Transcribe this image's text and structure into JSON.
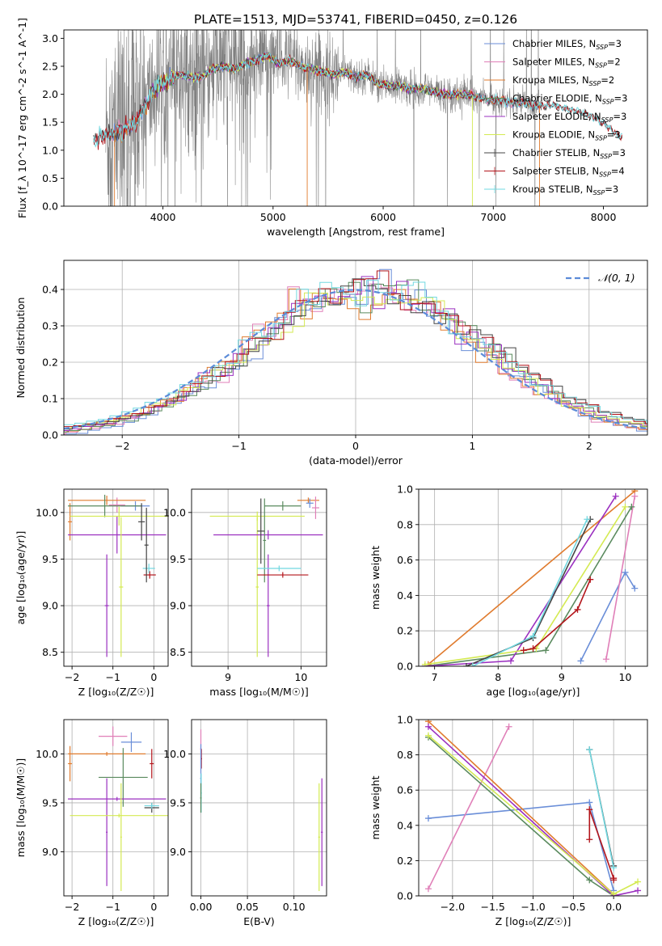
{
  "title": "PLATE=1513, MJD=53741, FIBERID=0450, z=0.126",
  "colors": {
    "Chabrier MILES": "#6a8ed8",
    "Salpeter MILES": "#e07fb8",
    "Kroupa MILES": "#e07b2e",
    "Chabrier ELODIE": "#5a8a5e",
    "Salpeter ELODIE": "#9b30c0",
    "Kroupa ELODIE": "#d4ea52",
    "Chabrier STELIB": "#444444",
    "Salpeter STELIB": "#b3141a",
    "Kroupa STELIB": "#72d8e0",
    "data": "#808080",
    "normal": "#5b8bd8",
    "grid": "#b0b0b0"
  },
  "chart_data": [
    {
      "id": "spectrum",
      "type": "line",
      "title": "PLATE=1513, MJD=53741, FIBERID=0450, z=0.126",
      "xlabel": "wavelength [Angstrom, rest frame]",
      "ylabel": "Flux [f_λ 10^-17 erg cm^-2 s^-1 A^-1]",
      "xlim": [
        3100,
        8400
      ],
      "ylim": [
        0,
        3.15
      ],
      "xticks": [
        4000,
        5000,
        6000,
        7000,
        8000
      ],
      "yticks": [
        0.0,
        0.5,
        1.0,
        1.5,
        2.0,
        2.5,
        3.0
      ],
      "ytick_labels": [
        "0.0",
        "0.5",
        "1.0",
        "1.5",
        "2.0",
        "2.5",
        "3.0"
      ],
      "grid": false,
      "legend_position": "top-right",
      "legend": [
        {
          "label": "Chabrier MILES, N",
          "sub": "SSP",
          "suffix": "=3"
        },
        {
          "label": "Salpeter MILES, N",
          "sub": "SSP",
          "suffix": "=2"
        },
        {
          "label": "Kroupa MILES, N",
          "sub": "SSP",
          "suffix": "=2"
        },
        {
          "label": "Chabrier ELODIE, N",
          "sub": "SSP",
          "suffix": "=3"
        },
        {
          "label": "Salpeter ELODIE, N",
          "sub": "SSP",
          "suffix": "=3"
        },
        {
          "label": "Kroupa ELODIE, N",
          "sub": "SSP",
          "suffix": "=3"
        },
        {
          "label": "Chabrier STELIB, N",
          "sub": "SSP",
          "suffix": "=3"
        },
        {
          "label": "Salpeter STELIB, N",
          "sub": "SSP",
          "suffix": "=4"
        },
        {
          "label": "Kroupa STELIB, N",
          "sub": "SSP",
          "suffix": "=3"
        }
      ],
      "model_curve": {
        "x": [
          3370,
          3450,
          3550,
          3650,
          3750,
          3850,
          3950,
          4050,
          4150,
          4250,
          4350,
          4450,
          4550,
          4650,
          4750,
          4850,
          4950,
          5050,
          5150,
          5250,
          5350,
          5450,
          5550,
          5650,
          5750,
          5850,
          5950,
          6050,
          6150,
          6250,
          6350,
          6450,
          6550,
          6650,
          6750,
          6850,
          6950,
          7050,
          7150,
          7250,
          7350,
          7450,
          7550,
          7650,
          7750,
          7850,
          7950,
          8050,
          8150
        ],
        "y": [
          1.15,
          1.25,
          1.3,
          1.35,
          1.5,
          1.85,
          2.15,
          2.25,
          2.35,
          2.3,
          2.3,
          2.45,
          2.5,
          2.45,
          2.55,
          2.6,
          2.7,
          2.55,
          2.6,
          2.5,
          2.45,
          2.4,
          2.35,
          2.4,
          2.3,
          2.35,
          2.2,
          2.15,
          2.15,
          2.1,
          2.1,
          2.05,
          2.0,
          2.0,
          2.0,
          1.95,
          1.9,
          1.9,
          1.85,
          1.85,
          1.8,
          1.8,
          1.8,
          1.75,
          1.7,
          1.65,
          1.55,
          1.4,
          1.25
        ]
      },
      "data_range": [
        3480,
        7440
      ]
    },
    {
      "id": "residuals",
      "type": "histogram",
      "xlabel": "(data-model)/error",
      "ylabel": "Normed distribution",
      "xlim": [
        -2.5,
        2.5
      ],
      "ylim": [
        0,
        0.48
      ],
      "xticks": [
        -2,
        -1,
        0,
        1,
        2
      ],
      "xtick_labels": [
        "−2",
        "−1",
        "0",
        "1",
        "2"
      ],
      "yticks": [
        0.0,
        0.1,
        0.2,
        0.3,
        0.4
      ],
      "ytick_labels": [
        "0.0",
        "0.1",
        "0.2",
        "0.3",
        "0.4"
      ],
      "grid": true,
      "bin_width": 0.1,
      "legend_position": "top-right",
      "normal_label": "𝒩(0, 1)"
    },
    {
      "id": "age-vs-Z",
      "type": "errorbar",
      "xlabel": "Z [log₁₀(Z/Z☉)]",
      "ylabel": "age  [log₁₀(age/yr)]",
      "xlim": [
        -2.2,
        0.35
      ],
      "ylim": [
        8.35,
        10.25
      ],
      "xticks": [
        -2,
        -1,
        0
      ],
      "xtick_labels": [
        "−2",
        "−1",
        "0"
      ],
      "yticks": [
        8.5,
        9.0,
        9.5,
        10.0
      ],
      "ytick_labels": [
        "8.5",
        "9.0",
        "9.5",
        "10.0"
      ],
      "grid": true,
      "points": [
        {
          "model": "Chabrier MILES",
          "x": -0.45,
          "xerr": 0.35,
          "y": 10.07,
          "yerr": 0.05
        },
        {
          "model": "Salpeter MILES",
          "x": -0.9,
          "xerr": 0.2,
          "y": 10.08,
          "yerr": 0.08
        },
        {
          "model": "Kroupa MILES",
          "x": -1.15,
          "xerr": 0.95,
          "y": 10.13,
          "yerr": 0.05
        },
        {
          "model": "Kroupa MILES",
          "x": -2.05,
          "xerr": 0.05,
          "y": 9.9,
          "yerr": 0.2
        },
        {
          "model": "Chabrier ELODIE",
          "x": -1.2,
          "xerr": 0.9,
          "y": 10.07,
          "yerr": 0.12
        },
        {
          "model": "Salpeter ELODIE",
          "x": -0.9,
          "xerr": 1.2,
          "y": 9.76,
          "yerr": 0.2
        },
        {
          "model": "Salpeter ELODIE",
          "x": -1.15,
          "xerr": 0.05,
          "y": 9.0,
          "yerr": 0.55
        },
        {
          "model": "Kroupa ELODIE",
          "x": -0.85,
          "xerr": 1.2,
          "y": 9.96,
          "yerr": 0.1
        },
        {
          "model": "Kroupa ELODIE",
          "x": -0.8,
          "xerr": 0.05,
          "y": 9.2,
          "yerr": 0.75
        },
        {
          "model": "Chabrier STELIB",
          "x": -0.3,
          "xerr": 0.08,
          "y": 9.9,
          "yerr": 0.2
        },
        {
          "model": "Salpeter STELIB",
          "x": -0.1,
          "xerr": 0.15,
          "y": 9.33,
          "yerr": 0.04
        },
        {
          "model": "Kroupa STELIB",
          "x": -0.12,
          "xerr": 0.15,
          "y": 9.4,
          "yerr": 0.05
        },
        {
          "model": "Chabrier STELIB",
          "x": -0.18,
          "xerr": 0.05,
          "y": 9.65,
          "yerr": 0.4
        }
      ]
    },
    {
      "id": "age-vs-mass",
      "type": "errorbar",
      "xlabel": "mass [log₁₀(M/M☉)]",
      "ylabel": "",
      "xlim": [
        8.5,
        10.35
      ],
      "ylim": [
        8.35,
        10.25
      ],
      "xticks": [
        9,
        10
      ],
      "xtick_labels": [
        "9",
        "10"
      ],
      "yticks": [
        8.5,
        9.0,
        9.5,
        10.0
      ],
      "ytick_labels": [
        "8.5",
        "9.0",
        "9.5",
        "10.0"
      ],
      "grid": true,
      "points": [
        {
          "model": "Kroupa ELODIE",
          "x": 9.4,
          "xerr": 0.65,
          "y": 9.96,
          "yerr": 0.05
        },
        {
          "model": "Kroupa ELODIE",
          "x": 9.4,
          "xerr": 0.02,
          "y": 9.2,
          "yerr": 0.75
        },
        {
          "model": "Salpeter ELODIE",
          "x": 9.55,
          "xerr": 0.75,
          "y": 9.76,
          "yerr": 0.05
        },
        {
          "model": "Salpeter ELODIE",
          "x": 9.55,
          "xerr": 0.02,
          "y": 9.0,
          "yerr": 0.55
        },
        {
          "model": "Chabrier ELODIE",
          "x": 9.75,
          "xerr": 0.25,
          "y": 10.07,
          "yerr": 0.05
        },
        {
          "model": "Chabrier ELODIE",
          "x": 9.5,
          "xerr": 0.02,
          "y": 9.7,
          "yerr": 0.45
        },
        {
          "model": "Chabrier STELIB",
          "x": 9.45,
          "xerr": 0.05,
          "y": 9.8,
          "yerr": 0.35
        },
        {
          "model": "Salpeter STELIB",
          "x": 9.75,
          "xerr": 0.35,
          "y": 9.33,
          "yerr": 0.03
        },
        {
          "model": "Kroupa STELIB",
          "x": 9.7,
          "xerr": 0.3,
          "y": 9.4,
          "yerr": 0.03
        },
        {
          "model": "Kroupa MILES",
          "x": 10.1,
          "xerr": 0.15,
          "y": 10.13,
          "yerr": 0.03
        },
        {
          "model": "Salpeter MILES",
          "x": 10.2,
          "xerr": 0.05,
          "y": 10.05,
          "yerr": 0.12
        },
        {
          "model": "Chabrier MILES",
          "x": 10.12,
          "xerr": 0.05,
          "y": 10.1,
          "yerr": 0.05
        }
      ]
    },
    {
      "id": "weight-vs-age",
      "type": "line",
      "xlabel": "age  [log₁₀(age/yr)]",
      "ylabel": "mass weight",
      "xlim": [
        6.75,
        10.35
      ],
      "ylim": [
        0,
        1.0
      ],
      "xticks": [
        7,
        8,
        9,
        10
      ],
      "xtick_labels": [
        "7",
        "8",
        "9",
        "10"
      ],
      "yticks": [
        0.0,
        0.2,
        0.4,
        0.6,
        0.8,
        1.0
      ],
      "ytick_labels": [
        "0.0",
        "0.2",
        "0.4",
        "0.6",
        "0.8",
        "1.0"
      ],
      "grid": true,
      "series": [
        {
          "model": "Kroupa MILES",
          "x": [
            6.9,
            10.15
          ],
          "y": [
            0.01,
            0.99
          ]
        },
        {
          "model": "Chabrier MILES",
          "x": [
            9.3,
            10.0,
            10.15
          ],
          "y": [
            0.03,
            0.53,
            0.44
          ]
        },
        {
          "model": "Salpeter MILES",
          "x": [
            9.7,
            10.15
          ],
          "y": [
            0.04,
            0.96
          ]
        },
        {
          "model": "Chabrier ELODIE",
          "x": [
            6.85,
            8.75,
            10.1
          ],
          "y": [
            0.0,
            0.09,
            0.9
          ]
        },
        {
          "model": "Salpeter ELODIE",
          "x": [
            6.85,
            8.2,
            9.85
          ],
          "y": [
            0.0,
            0.03,
            0.96
          ]
        },
        {
          "model": "Kroupa ELODIE",
          "x": [
            6.85,
            8.6,
            10.0
          ],
          "y": [
            0.01,
            0.1,
            0.9
          ]
        },
        {
          "model": "Chabrier STELIB",
          "x": [
            7.5,
            8.55,
            9.45
          ],
          "y": [
            0.0,
            0.16,
            0.83
          ]
        },
        {
          "model": "Salpeter STELIB",
          "x": [
            8.4,
            8.55,
            9.25,
            9.45
          ],
          "y": [
            0.09,
            0.1,
            0.32,
            0.49
          ]
        },
        {
          "model": "Kroupa STELIB",
          "x": [
            7.6,
            8.55,
            9.4
          ],
          "y": [
            0.0,
            0.17,
            0.83
          ]
        }
      ]
    },
    {
      "id": "mass-vs-Z",
      "type": "errorbar",
      "xlabel": "Z [log₁₀(Z/Z☉)]",
      "ylabel": "mass [log₁₀(M/M☉)]",
      "xlim": [
        -2.2,
        0.35
      ],
      "ylim": [
        8.55,
        10.35
      ],
      "xticks": [
        -2,
        -1,
        0
      ],
      "xtick_labels": [
        "−2",
        "−1",
        "0"
      ],
      "yticks": [
        9.0,
        9.5,
        10.0
      ],
      "ytick_labels": [
        "9.0",
        "9.5",
        "10.0"
      ],
      "grid": true,
      "points": [
        {
          "model": "Salpeter MILES",
          "x": -1.0,
          "xerr": 0.35,
          "y": 10.18,
          "yerr": 0.1
        },
        {
          "model": "Chabrier MILES",
          "x": -0.55,
          "xerr": 0.25,
          "y": 10.12,
          "yerr": 0.1
        },
        {
          "model": "Kroupa MILES",
          "x": -1.15,
          "xerr": 0.95,
          "y": 10.0,
          "yerr": 0.02
        },
        {
          "model": "Kroupa MILES",
          "x": -2.05,
          "xerr": 0.05,
          "y": 9.9,
          "yerr": 0.18
        },
        {
          "model": "Chabrier ELODIE",
          "x": -0.75,
          "xerr": 0.6,
          "y": 9.76,
          "yerr": 0.3
        },
        {
          "model": "Salpeter ELODIE",
          "x": -0.9,
          "xerr": 1.2,
          "y": 9.54,
          "yerr": 0.02
        },
        {
          "model": "Salpeter ELODIE",
          "x": -1.15,
          "xerr": 0.02,
          "y": 9.2,
          "yerr": 0.55
        },
        {
          "model": "Kroupa ELODIE",
          "x": -0.85,
          "xerr": 1.2,
          "y": 9.37,
          "yerr": 0.02
        },
        {
          "model": "Kroupa ELODIE",
          "x": -0.8,
          "xerr": 0.02,
          "y": 9.15,
          "yerr": 0.55
        },
        {
          "model": "Chabrier STELIB",
          "x": -0.05,
          "xerr": 0.18,
          "y": 9.45,
          "yerr": 0.05
        },
        {
          "model": "Salpeter STELIB",
          "x": -0.05,
          "xerr": 0.05,
          "y": 9.9,
          "yerr": 0.15
        },
        {
          "model": "Kroupa STELIB",
          "x": -0.05,
          "xerr": 0.18,
          "y": 9.47,
          "yerr": 0.03
        }
      ]
    },
    {
      "id": "mass-vs-ebv",
      "type": "errorbar",
      "xlabel": "E(B-V)",
      "ylabel": "",
      "xlim": [
        -0.01,
        0.135
      ],
      "ylim": [
        8.55,
        10.35
      ],
      "xticks": [
        0.0,
        0.05,
        0.1
      ],
      "xtick_labels": [
        "0.00",
        "0.05",
        "0.10"
      ],
      "yticks": [
        9.0,
        9.5,
        10.0
      ],
      "ytick_labels": [
        "9.0",
        "9.5",
        "10.0"
      ],
      "grid": true,
      "points": [
        {
          "model": "Salpeter MILES",
          "x": 0.0,
          "xerr": 0.0008,
          "y": 10.05,
          "yerr": 0.2
        },
        {
          "model": "Salpeter STELIB",
          "x": 0.0005,
          "xerr": 0.0008,
          "y": 9.95,
          "yerr": 0.1
        },
        {
          "model": "Chabrier MILES",
          "x": 0.0,
          "xerr": 0.0008,
          "y": 9.75,
          "yerr": 0.35
        },
        {
          "model": "Kroupa STELIB",
          "x": 0.0003,
          "xerr": 0.0008,
          "y": 9.6,
          "yerr": 0.2
        },
        {
          "model": "Chabrier ELODIE",
          "x": 0.0,
          "xerr": 0.0008,
          "y": 9.55,
          "yerr": 0.15
        },
        {
          "model": "Kroupa ELODIE",
          "x": 0.127,
          "xerr": 0.001,
          "y": 9.15,
          "yerr": 0.55
        },
        {
          "model": "Salpeter ELODIE",
          "x": 0.13,
          "xerr": 0.001,
          "y": 9.2,
          "yerr": 0.55
        }
      ]
    },
    {
      "id": "weight-vs-Z",
      "type": "line",
      "xlabel": "Z [log₁₀(Z/Z☉)]",
      "ylabel": "mass weight",
      "xlim": [
        -2.42,
        0.42
      ],
      "ylim": [
        0,
        1.0
      ],
      "xticks": [
        -2.0,
        -1.5,
        -1.0,
        -0.5,
        0.0
      ],
      "xtick_labels": [
        "−2.0",
        "−1.5",
        "−1.0",
        "−0.5",
        "0.0"
      ],
      "yticks": [
        0.0,
        0.2,
        0.4,
        0.6,
        0.8,
        1.0
      ],
      "ytick_labels": [
        "0.0",
        "0.2",
        "0.4",
        "0.6",
        "0.8",
        "1.0"
      ],
      "grid": true,
      "series": [
        {
          "model": "Chabrier MILES",
          "x": [
            -2.3,
            -0.3,
            0.0
          ],
          "y": [
            0.44,
            0.53,
            0.03
          ]
        },
        {
          "model": "Salpeter MILES",
          "x": [
            -2.3,
            -1.3
          ],
          "y": [
            0.04,
            0.96
          ]
        },
        {
          "model": "Kroupa MILES",
          "x": [
            -2.3,
            0.0
          ],
          "y": [
            0.99,
            0.01
          ]
        },
        {
          "model": "Chabrier ELODIE",
          "x": [
            -2.3,
            -0.3,
            0.0
          ],
          "y": [
            0.9,
            0.09,
            0.0
          ]
        },
        {
          "model": "Salpeter ELODIE",
          "x": [
            -2.3,
            0.0,
            0.3
          ],
          "y": [
            0.96,
            0.0,
            0.03
          ]
        },
        {
          "model": "Kroupa ELODIE",
          "x": [
            -2.3,
            0.0,
            0.3
          ],
          "y": [
            0.91,
            0.01,
            0.08
          ]
        },
        {
          "model": "Chabrier STELIB",
          "x": [
            -0.3,
            0.0
          ],
          "y": [
            0.83,
            0.17
          ]
        },
        {
          "model": "Salpeter STELIB",
          "x": [
            -0.3,
            -0.3,
            0.0,
            0.0
          ],
          "y": [
            0.32,
            0.49,
            0.1,
            0.09
          ]
        },
        {
          "model": "Kroupa STELIB",
          "x": [
            -0.3,
            0.0
          ],
          "y": [
            0.83,
            0.16
          ]
        }
      ]
    }
  ]
}
